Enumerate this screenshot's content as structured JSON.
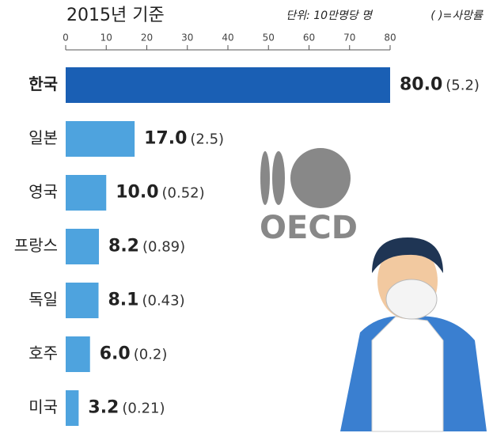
{
  "chart_data": {
    "type": "bar",
    "orientation": "horizontal",
    "title": "2015년 기준",
    "unit": "단위: 10만명당 명",
    "note": "( )=사망률",
    "categories": [
      "한국",
      "일본",
      "영국",
      "프랑스",
      "독일",
      "호주",
      "미국"
    ],
    "values": [
      80.0,
      17.0,
      10.0,
      8.2,
      8.1,
      6.0,
      3.2
    ],
    "value_labels": [
      "80.0",
      "17.0",
      "10.0",
      "8.2",
      "8.1",
      "6.0",
      "3.2"
    ],
    "rate_labels": [
      "(5.2)",
      "(2.5)",
      "(0.52)",
      "(0.89)",
      "(0.43)",
      "(0.2)",
      "(0.21)"
    ],
    "colors": [
      "#1a5fb4",
      "#4ea3de",
      "#4ea3de",
      "#4ea3de",
      "#4ea3de",
      "#4ea3de",
      "#4ea3de"
    ],
    "xlim": [
      0,
      80
    ],
    "xticks": [
      0,
      10,
      20,
      30,
      40,
      50,
      60,
      70,
      80
    ]
  },
  "logo": "OECD"
}
